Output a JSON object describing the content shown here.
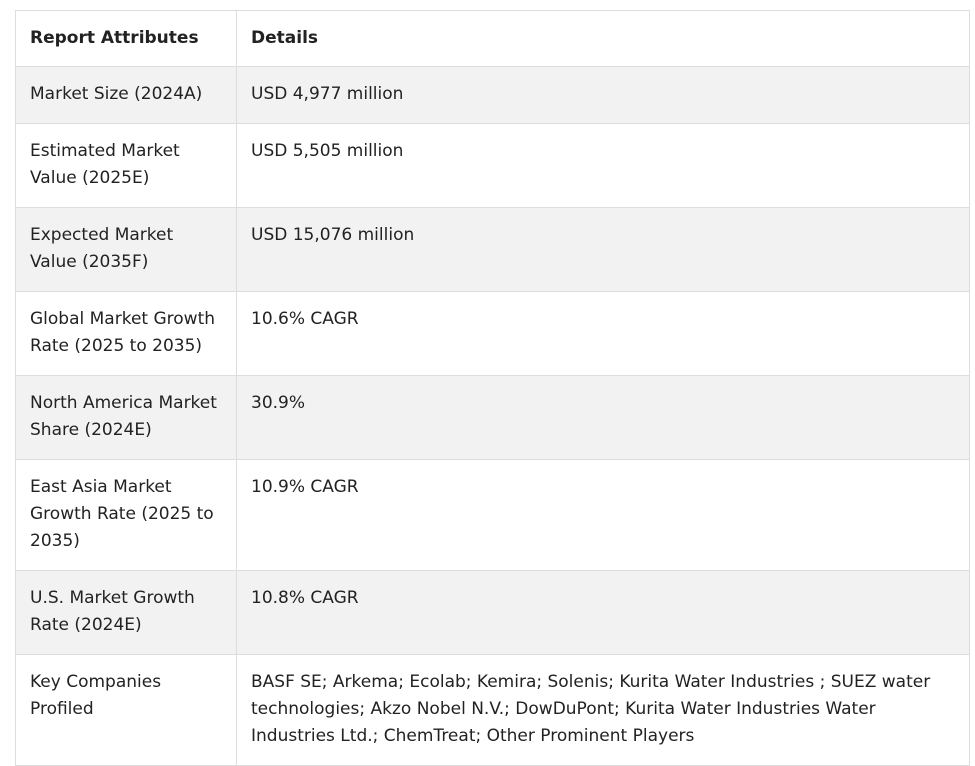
{
  "table": {
    "headers": [
      "Report Attributes",
      "Details"
    ],
    "rows": [
      {
        "attribute": "Market Size (2024A)",
        "detail": "USD 4,977 million"
      },
      {
        "attribute": "Estimated Market Value (2025E)",
        "detail": "USD 5,505 million"
      },
      {
        "attribute": "Expected Market Value (2035F)",
        "detail": "USD 15,076 million"
      },
      {
        "attribute": "Global Market Growth Rate (2025 to 2035)",
        "detail": "10.6% CAGR"
      },
      {
        "attribute": "North America Market Share (2024E)",
        "detail": "30.9%"
      },
      {
        "attribute": "East Asia Market Growth Rate (2025 to 2035)",
        "detail": "10.9% CAGR"
      },
      {
        "attribute": "U.S. Market Growth Rate (2024E)",
        "detail": "10.8% CAGR"
      },
      {
        "attribute": "Key Companies Profiled",
        "detail": "BASF SE; Arkema; Ecolab; Kemira; Solenis; Kurita Water Industries ; SUEZ water technologies; Akzo Nobel N.V.; DowDuPont; Kurita Water Industries Water Industries Ltd.; ChemTreat; Other Prominent Players"
      }
    ]
  }
}
